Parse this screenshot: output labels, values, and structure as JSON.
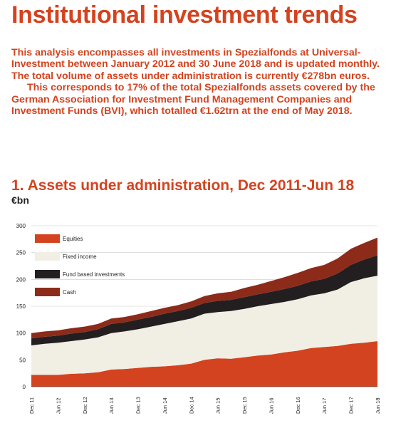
{
  "header": {
    "title": "Institutional investment trends",
    "paragraph1": "This analysis encompasses all investments in Spezialfonds at Universal-Investment between January 2012 and 30 June 2018 and is updated monthly. The total volume of assets under administration is currently €278bn euros.",
    "paragraph2": "This corresponds to 17% of the total Spezialfonds assets covered by the German Association for Investment Fund Management Companies and Investment Funds (BVI), which totalled €1.62trn at the end of May 2018."
  },
  "chart_data": {
    "type": "area",
    "stacked": true,
    "title": "1. Assets under administration, Dec 2011-Jun 18",
    "ylabel": "€bn",
    "xlabel": "",
    "ylim": [
      0,
      300
    ],
    "yticks": [
      0,
      50,
      100,
      150,
      200,
      250,
      300
    ],
    "grid": true,
    "legend_position": "top-left",
    "x_tick_labels": [
      "Dec 11",
      "Jun 12",
      "Dec 12",
      "Jun 13",
      "Dec 13",
      "Jun 14",
      "Dec 14",
      "Jun 15",
      "Dec 15",
      "Jun 16",
      "Dec 16",
      "Jun 17",
      "Dec 17",
      "Jun 18"
    ],
    "x": [
      "Dec 11",
      "Mar 12",
      "Jun 12",
      "Sep 12",
      "Dec 12",
      "Mar 13",
      "Jun 13",
      "Sep 13",
      "Dec 13",
      "Mar 14",
      "Jun 14",
      "Sep 14",
      "Dec 14",
      "Mar 15",
      "Jun 15",
      "Sep 15",
      "Dec 15",
      "Mar 16",
      "Jun 16",
      "Sep 16",
      "Dec 16",
      "Mar 17",
      "Jun 17",
      "Sep 17",
      "Dec 17",
      "Mar 18",
      "Jun 18"
    ],
    "series": [
      {
        "name": "Equities",
        "color": "#d4431f",
        "values": [
          22,
          22,
          22,
          24,
          25,
          27,
          32,
          33,
          35,
          37,
          38,
          40,
          43,
          50,
          53,
          52,
          55,
          58,
          60,
          64,
          67,
          72,
          74,
          76,
          80,
          82,
          85
        ]
      },
      {
        "name": "Fixed income",
        "color": "#f1eee4",
        "values": [
          55,
          58,
          60,
          61,
          63,
          65,
          68,
          70,
          72,
          75,
          79,
          82,
          84,
          86,
          86,
          89,
          90,
          92,
          94,
          94,
          96,
          98,
          100,
          105,
          115,
          120,
          122
        ]
      },
      {
        "name": "Fund based investments",
        "color": "#231f20",
        "values": [
          13,
          13,
          13,
          14,
          14,
          15,
          17,
          17,
          18,
          18,
          19,
          19,
          20,
          20,
          21,
          21,
          22,
          22,
          23,
          24,
          25,
          26,
          27,
          30,
          32,
          35,
          38
        ]
      },
      {
        "name": "Cash",
        "color": "#8c2b1a",
        "values": [
          10,
          10,
          10,
          10,
          10,
          10,
          10,
          10,
          10,
          11,
          11,
          11,
          12,
          13,
          14,
          15,
          17,
          18,
          20,
          22,
          24,
          25,
          26,
          28,
          30,
          31,
          33
        ]
      }
    ]
  }
}
